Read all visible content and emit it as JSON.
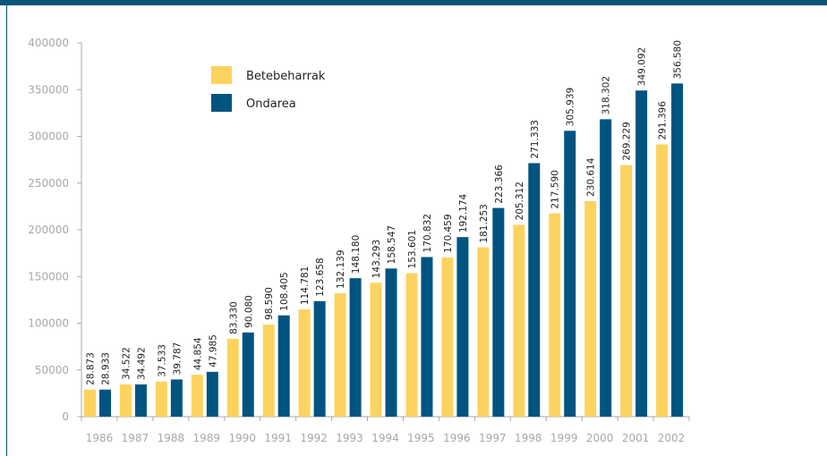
{
  "colors": {
    "accent": "#0b5477",
    "axis": "#a8a8a8"
  },
  "chart_data": {
    "type": "bar",
    "categories": [
      "1986",
      "1987",
      "1988",
      "1989",
      "1990",
      "1991",
      "1992",
      "1993",
      "1994",
      "1995",
      "1996",
      "1997",
      "1998",
      "1999",
      "2000",
      "2001",
      "2002"
    ],
    "series": [
      {
        "name": "Betebeharrak",
        "color": "#fdd35f",
        "values": [
          28873,
          34522,
          37533,
          44854,
          83330,
          98590,
          114781,
          132139,
          143293,
          153601,
          170459,
          181253,
          205312,
          217590,
          230614,
          269229,
          291396
        ],
        "labels": [
          "28.873",
          "34.522",
          "37.533",
          "44.854",
          "83.330",
          "98.590",
          "114.781",
          "132.139",
          "143.293",
          "153.601",
          "170.459",
          "181.253",
          "205.312",
          "217.590",
          "230.614",
          "269.229",
          "291.396"
        ]
      },
      {
        "name": "Ondarea",
        "color": "#005480",
        "values": [
          28933,
          34492,
          39787,
          47985,
          90080,
          108405,
          123658,
          148180,
          158547,
          170832,
          192174,
          223366,
          271333,
          305939,
          318302,
          349092,
          356580
        ],
        "labels": [
          "28.933",
          "34.492",
          "39.787",
          "47.985",
          "90.080",
          "108.405",
          "123.658",
          "148.180",
          "158.547",
          "170.832",
          "192.174",
          "223.366",
          "271.333",
          "305.939",
          "318.302",
          "349.092",
          "356.580"
        ]
      }
    ],
    "yticks": [
      "0",
      "50000",
      "100000",
      "150000",
      "200000",
      "250000",
      "300000",
      "350000",
      "400000"
    ],
    "ylim": [
      0,
      400000
    ],
    "grid": false,
    "legend": "top-left"
  }
}
